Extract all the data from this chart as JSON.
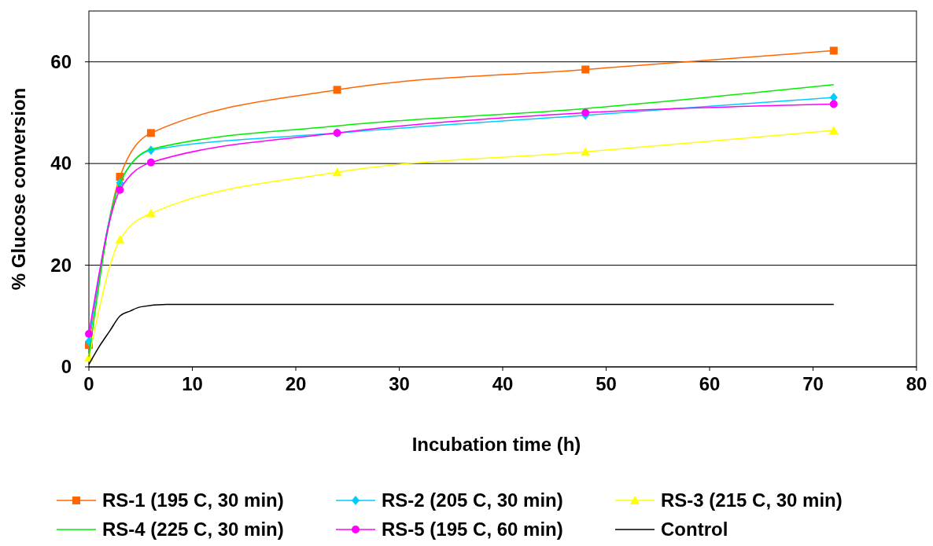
{
  "chart_data": {
    "type": "line",
    "xlabel": "Incubation time (h)",
    "ylabel": "% Glucose conversion",
    "xlim": [
      0,
      80
    ],
    "xticks": [
      0,
      10,
      20,
      30,
      40,
      50,
      60,
      70,
      80
    ],
    "ylim": [
      0,
      70
    ],
    "yticks": [
      0,
      20,
      40,
      60
    ],
    "grid": "y",
    "legend": "bottom",
    "line_style": "solid",
    "x": [
      0,
      3,
      6,
      24,
      48,
      72
    ],
    "series": [
      {
        "name": "RS-1 (195 C, 30 min)",
        "color": "#ff6600",
        "marker": "square",
        "values": [
          4.3,
          37.4,
          46,
          54.5,
          58.5,
          62.2
        ]
      },
      {
        "name": "RS-2 (205 C, 30 min)",
        "color": "#00ccff",
        "marker": "diamond",
        "values": [
          5,
          36.2,
          42.6,
          46,
          49.5,
          53
        ]
      },
      {
        "name": "RS-3 (215 C, 30 min)",
        "color": "#ffff00",
        "marker": "triangle",
        "values": [
          1.8,
          25,
          30.2,
          38.3,
          42.3,
          46.5
        ]
      },
      {
        "name": "RS-4 (225 C, 30 min)",
        "color": "#00ee00",
        "marker": "none",
        "values": [
          2,
          36.2,
          42.8,
          47.4,
          50.8,
          55.5
        ]
      },
      {
        "name": "RS-5 (195 C, 60 min)",
        "color": "#ff00ff",
        "marker": "circle",
        "values": [
          6.5,
          34.8,
          40.2,
          46,
          50,
          51.7
        ]
      },
      {
        "name": "Control",
        "color": "#000000",
        "marker": "none",
        "x": [
          0,
          1,
          2,
          3,
          4,
          5,
          7.5,
          72
        ],
        "values": [
          0.5,
          4,
          7,
          10,
          11,
          11.8,
          12.3,
          12.3
        ]
      }
    ]
  }
}
